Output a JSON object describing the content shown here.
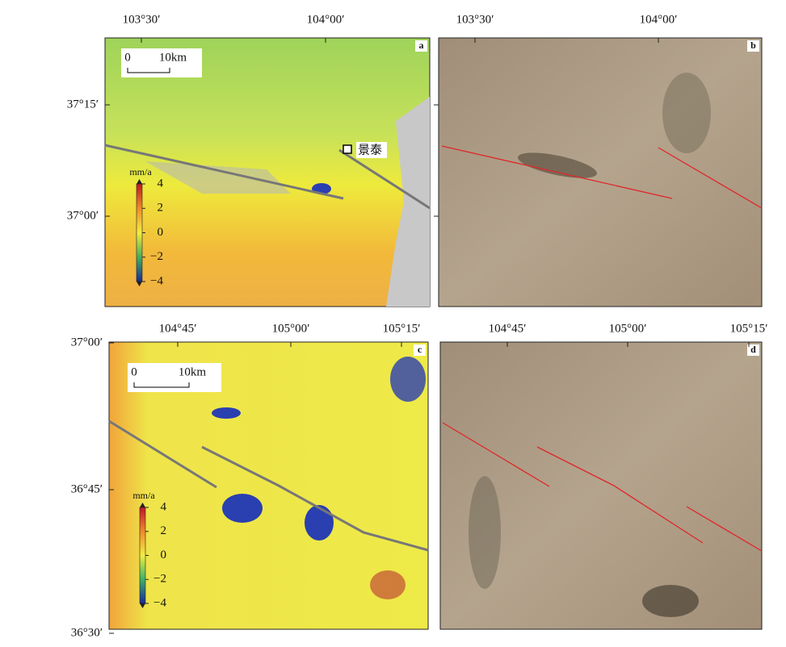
{
  "panels": [
    {
      "letter": "a",
      "x_labels": [
        "103°30′",
        "104°00′"
      ],
      "y_labels": [
        "37°15′",
        "37°00′"
      ],
      "scale_bar": {
        "start": "0",
        "end": "10km"
      },
      "colorbar": {
        "unit": "mm/a",
        "labels": [
          "4",
          "2",
          "0",
          "−2",
          "−4"
        ]
      },
      "place": "景泰"
    },
    {
      "letter": "b",
      "x_labels": [
        "103°30′",
        "104°00′"
      ]
    },
    {
      "letter": "c",
      "x_labels": [
        "104°45′",
        "105°00′",
        "105°15′"
      ],
      "y_labels": [
        "37°00′",
        "36°45′",
        "36°30′"
      ],
      "scale_bar": {
        "start": "0",
        "end": "10km"
      },
      "colorbar": {
        "unit": "mm/a",
        "labels": [
          "4",
          "2",
          "0",
          "−2",
          "−4"
        ]
      }
    },
    {
      "letter": "d",
      "x_labels": [
        "104°45′",
        "105°00′",
        "105°15′"
      ]
    }
  ]
}
